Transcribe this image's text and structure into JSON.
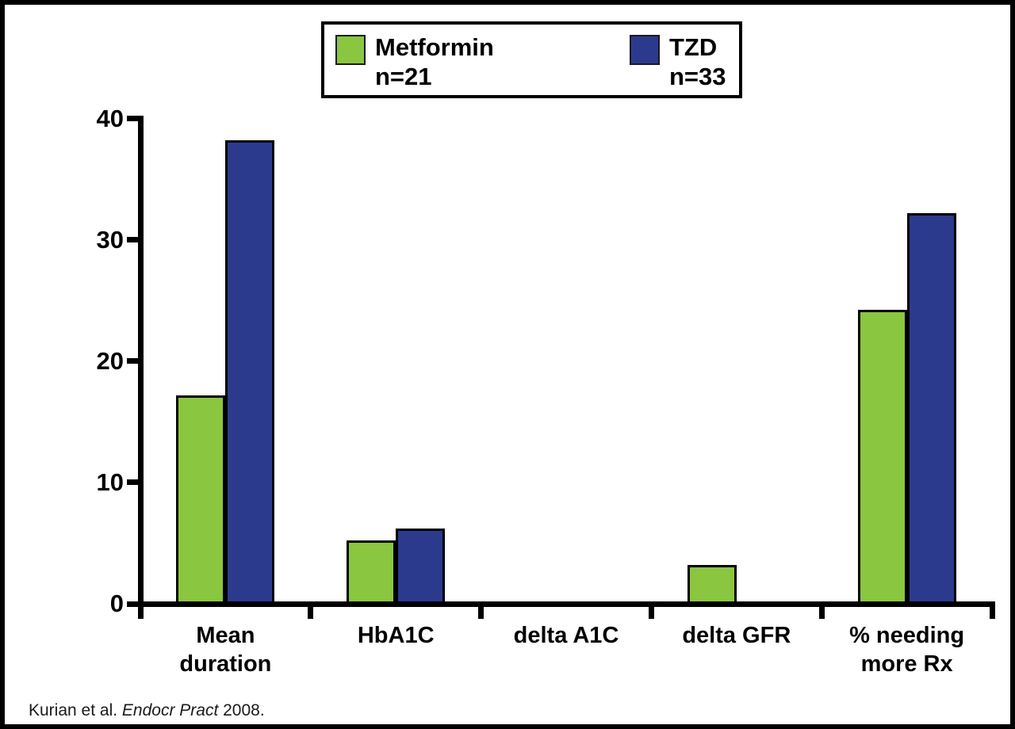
{
  "legend": {
    "items": [
      {
        "name": "Metformin",
        "n": "n=21",
        "color": "#8AC640"
      },
      {
        "name": "TZD",
        "n": "n=33",
        "color": "#2C3A8E"
      }
    ]
  },
  "citation": {
    "prefix": "Kurian et al. ",
    "italic": "Endocr Pract",
    "suffix": " 2008."
  },
  "chart_data": {
    "type": "bar",
    "title": "",
    "xlabel": "",
    "ylabel": "",
    "categories": [
      "Mean duration",
      "HbA1C",
      "delta A1C",
      "delta GFR",
      "% needing more Rx"
    ],
    "category_lines": [
      [
        "Mean",
        "duration"
      ],
      [
        "HbA1C"
      ],
      [
        "delta A1C"
      ],
      [
        "delta GFR"
      ],
      [
        "% needing",
        "more Rx"
      ]
    ],
    "series": [
      {
        "name": "Metformin n=21",
        "color": "#8AC640",
        "values": [
          17,
          5,
          0,
          3,
          24
        ]
      },
      {
        "name": "TZD n=33",
        "color": "#2C3A8E",
        "values": [
          38,
          6,
          0,
          0,
          32
        ]
      }
    ],
    "ylim": [
      0,
      40
    ],
    "yticks": [
      0,
      10,
      20,
      30,
      40
    ],
    "grid": false,
    "legend_position": "top"
  }
}
